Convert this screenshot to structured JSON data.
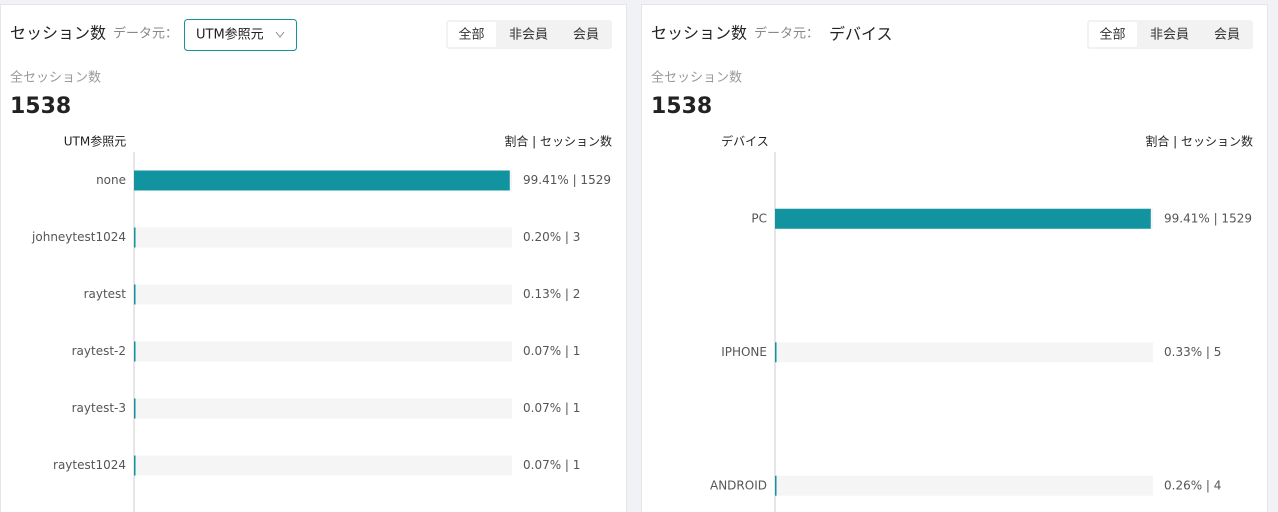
{
  "chart_data": [
    {
      "type": "bar",
      "title": "セッション数",
      "source_label": "データ元：",
      "source_value": "UTM参照元",
      "source_dropdown": true,
      "tabs": [
        "全部",
        "非会員",
        "会員"
      ],
      "selected_tab": 0,
      "total_label": "全セッション数",
      "total": 1538,
      "category_axis_label": "UTM参照元",
      "value_header": "割合 | セッション数",
      "categories": [
        "none",
        "johneytest1024",
        "raytest",
        "raytest-2",
        "raytest-3",
        "raytest1024"
      ],
      "values": [
        99.41,
        0.2,
        0.13,
        0.07,
        0.07,
        0.07
      ],
      "value_labels": [
        "99.41% | 1529",
        "0.20% | 3",
        "0.13% | 2",
        "0.07% | 1",
        "0.07% | 1",
        "0.07% | 1"
      ],
      "xlim": [
        0,
        100
      ],
      "color": "#1193a0"
    },
    {
      "type": "bar",
      "title": "セッション数",
      "source_label": "データ元：",
      "source_value": "デバイス",
      "source_dropdown": false,
      "tabs": [
        "全部",
        "非会員",
        "会員"
      ],
      "selected_tab": 0,
      "total_label": "全セッション数",
      "total": 1538,
      "category_axis_label": "デバイス",
      "value_header": "割合 | セッション数",
      "categories": [
        "PC",
        "IPHONE",
        "ANDROID"
      ],
      "values": [
        99.41,
        0.33,
        0.26
      ],
      "value_labels": [
        "99.41% | 1529",
        "0.33% | 5",
        "0.26% | 4"
      ],
      "xlim": [
        0,
        100
      ],
      "color": "#1193a0"
    }
  ]
}
